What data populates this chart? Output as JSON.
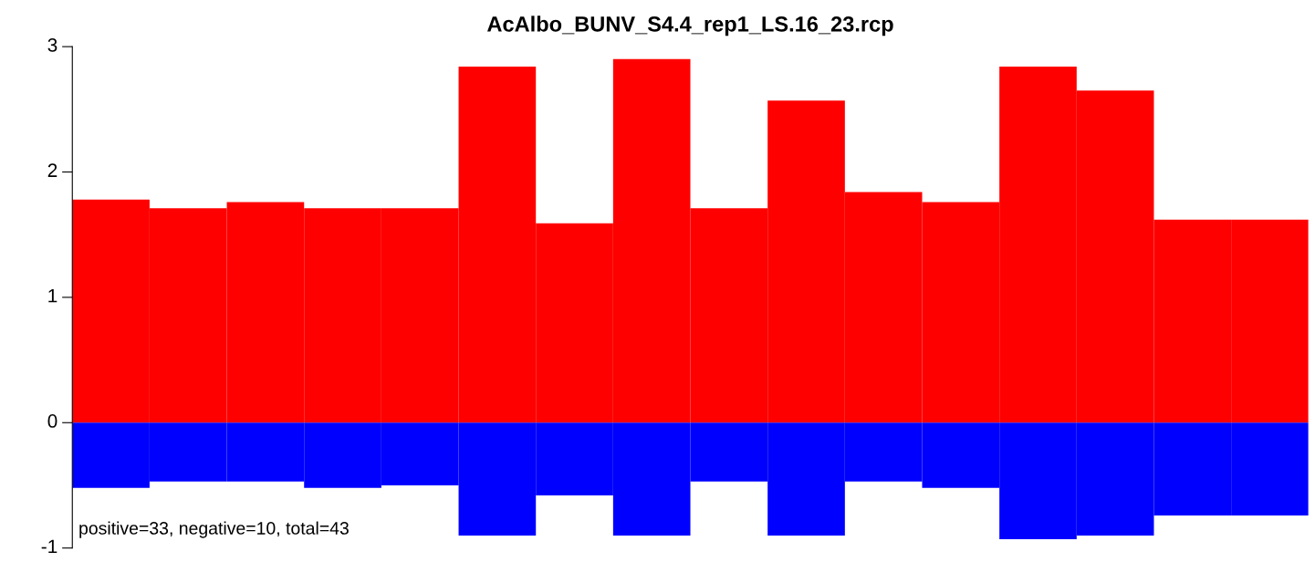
{
  "chart_data": {
    "type": "bar",
    "title": "AcAlbo_BUNV_S4.4_rep1_LS.16_23.rcp",
    "categories": [
      null,
      null,
      null,
      null,
      null,
      null,
      null,
      null,
      null,
      null,
      null,
      null,
      null,
      null,
      null,
      null
    ],
    "series": [
      {
        "color": "#ff0000",
        "values": [
          1.78,
          1.71,
          1.76,
          1.71,
          1.71,
          2.84,
          1.59,
          2.9,
          1.71,
          2.57,
          1.84,
          1.76,
          2.84,
          2.65,
          1.62,
          1.62
        ]
      },
      {
        "color": "#0000ff",
        "values": [
          -0.52,
          -0.47,
          -0.47,
          -0.52,
          -0.5,
          -0.9,
          -0.58,
          -0.9,
          -0.47,
          -0.9,
          -0.47,
          -0.52,
          -0.93,
          -0.9,
          -0.74,
          -0.74
        ]
      }
    ],
    "stacked": true,
    "ylim": [
      -1,
      3
    ],
    "yticks": [
      -1,
      0,
      1,
      2,
      3
    ],
    "tick_labels": "y",
    "grid": false,
    "legend": false,
    "annotations": [
      "positive=33, negative=10, total=43"
    ]
  }
}
